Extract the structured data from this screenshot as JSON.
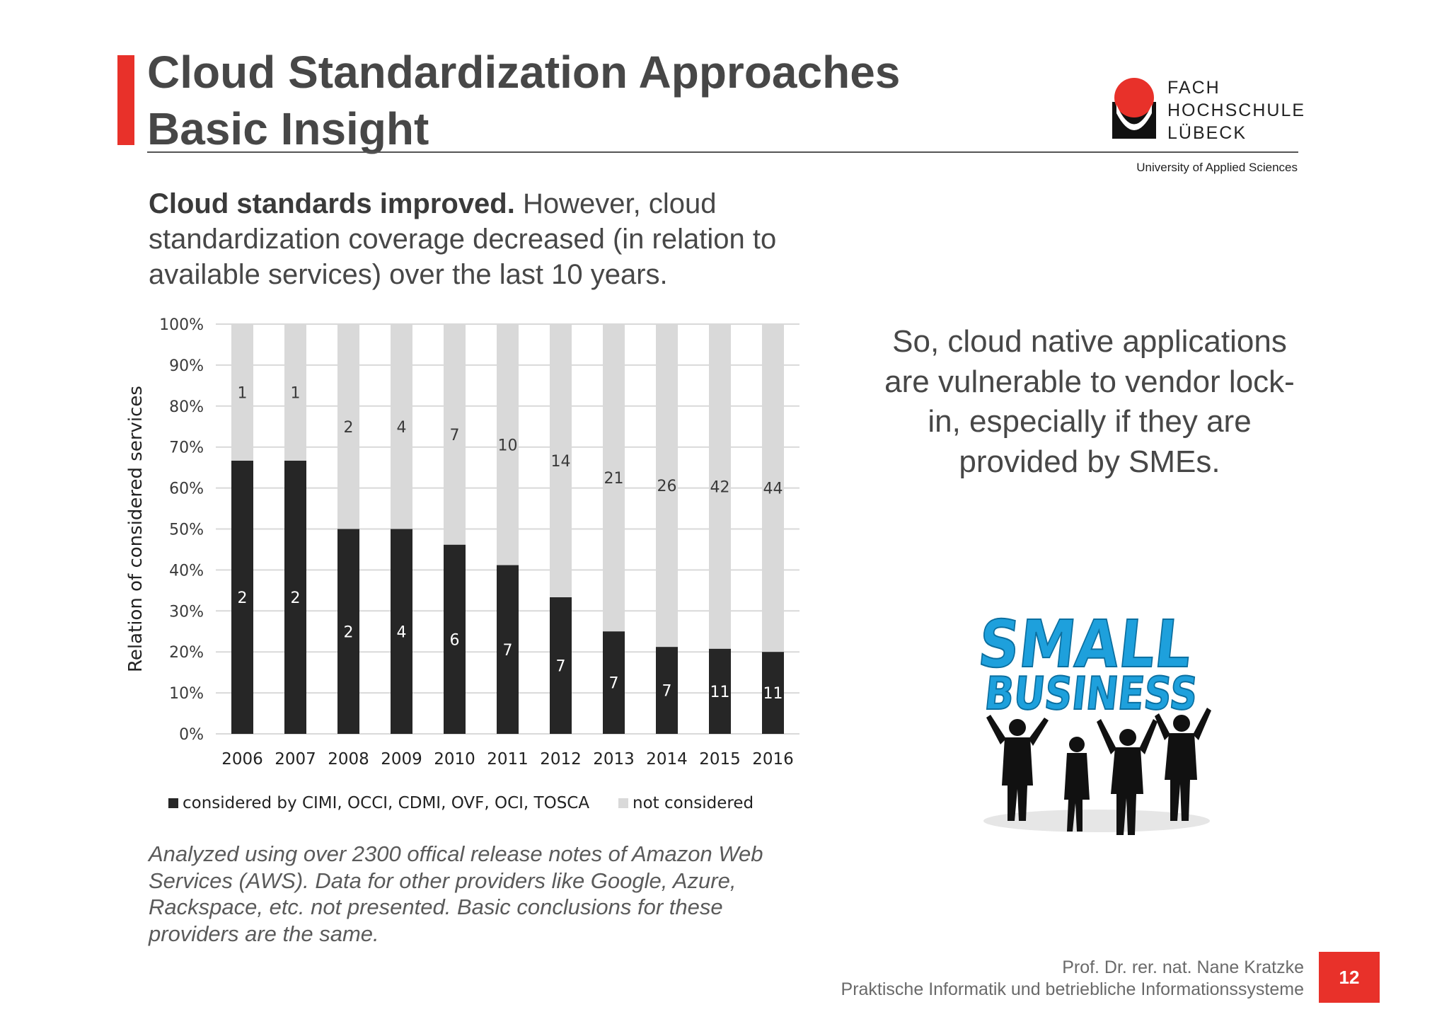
{
  "slide": {
    "title_line1": "Cloud Standardization Approaches",
    "title_line2": "Basic Insight",
    "page_number": "12",
    "accent_color": "#e8312a"
  },
  "logo": {
    "line1": "FACH",
    "line2": "HOCHSCHULE",
    "line3": "LÜBECK",
    "subtitle": "University of Applied Sciences"
  },
  "headline": {
    "bold": "Cloud standards improved.",
    "rest": " However, cloud standardization coverage decreased (in relation to available services) over the last 10 years."
  },
  "side_text": "So, cloud native applications are vulnerable to vendor lock-in, especially if they are provided by SMEs.",
  "small_business_graphic": {
    "word1": "SMALL",
    "word2": "BUSINESS",
    "color": "#1ea0dc"
  },
  "note": "Analyzed using over 2300 offical release notes of Amazon Web Services (AWS). Data for other providers like Google, Azure, Rackspace, etc. not presented. Basic conclusions for these providers are the same.",
  "footer": {
    "author": "Prof. Dr. rer. nat. Nane Kratzke",
    "department": "Praktische Informatik und betriebliche Informationssysteme"
  },
  "chart_data": {
    "type": "bar",
    "stacked": true,
    "normalized": true,
    "categories": [
      "2006",
      "2007",
      "2008",
      "2009",
      "2010",
      "2011",
      "2012",
      "2013",
      "2014",
      "2015",
      "2016"
    ],
    "series": [
      {
        "name": "considered by CIMI, OCCI, CDMI, OVF, OCI, TOSCA",
        "values": [
          2,
          2,
          2,
          4,
          6,
          7,
          7,
          7,
          7,
          11,
          11
        ],
        "color": "#262626"
      },
      {
        "name": "not considered",
        "values": [
          1,
          1,
          2,
          4,
          7,
          10,
          14,
          21,
          26,
          42,
          44
        ],
        "color": "#d9d9d9"
      }
    ],
    "ylabel": "Relation of considered services",
    "yticks": [
      "0%",
      "10%",
      "20%",
      "30%",
      "40%",
      "50%",
      "60%",
      "70%",
      "80%",
      "90%",
      "100%"
    ],
    "ylim": [
      0,
      100
    ],
    "grid": true,
    "legend_position": "bottom"
  }
}
